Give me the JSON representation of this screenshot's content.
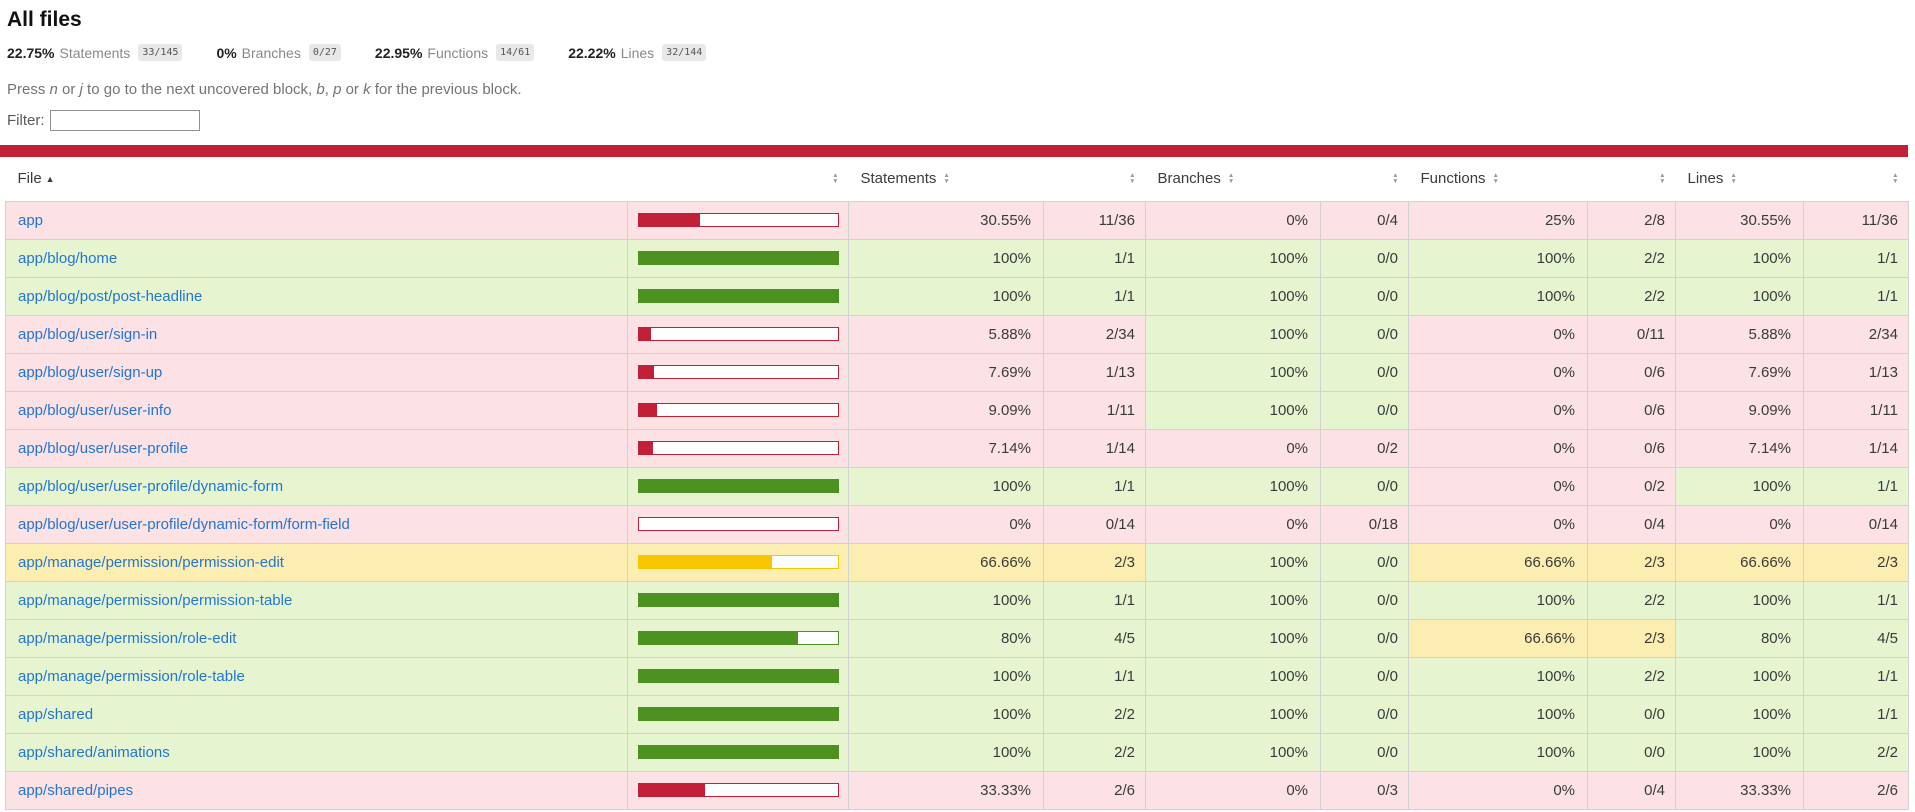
{
  "page": {
    "title": "All files"
  },
  "summary": {
    "metrics": [
      {
        "pct": "22.75%",
        "label": "Statements",
        "fraction": "33/145"
      },
      {
        "pct": "0%",
        "label": "Branches",
        "fraction": "0/27"
      },
      {
        "pct": "22.95%",
        "label": "Functions",
        "fraction": "14/61"
      },
      {
        "pct": "22.22%",
        "label": "Lines",
        "fraction": "32/144"
      }
    ]
  },
  "keyboard_hint": {
    "segments": [
      {
        "text": "Press "
      },
      {
        "text": "n",
        "em": true
      },
      {
        "text": " or "
      },
      {
        "text": "j",
        "em": true
      },
      {
        "text": " to go to the next uncovered block, "
      },
      {
        "text": "b",
        "em": true
      },
      {
        "text": ", "
      },
      {
        "text": "p",
        "em": true
      },
      {
        "text": " or "
      },
      {
        "text": "k",
        "em": true
      },
      {
        "text": " for the previous block."
      }
    ]
  },
  "filter": {
    "label": "Filter:",
    "value": "",
    "placeholder": ""
  },
  "table": {
    "headers": {
      "file": "File",
      "statements": "Statements",
      "branches": "Branches",
      "functions": "Functions",
      "lines": "Lines"
    },
    "sort": {
      "column": "file",
      "direction": "asc",
      "asc_icon": "▲"
    },
    "rows": [
      {
        "file": "app",
        "bar": {
          "pct": 30.55,
          "level": "low"
        },
        "statements": {
          "pct": "30.55%",
          "frac": "11/36",
          "level": "low"
        },
        "branches": {
          "pct": "0%",
          "frac": "0/4",
          "level": "low"
        },
        "functions": {
          "pct": "25%",
          "frac": "2/8",
          "level": "low"
        },
        "lines": {
          "pct": "30.55%",
          "frac": "11/36",
          "level": "low"
        }
      },
      {
        "file": "app/blog/home",
        "bar": {
          "pct": 100,
          "level": "high"
        },
        "statements": {
          "pct": "100%",
          "frac": "1/1",
          "level": "high"
        },
        "branches": {
          "pct": "100%",
          "frac": "0/0",
          "level": "high"
        },
        "functions": {
          "pct": "100%",
          "frac": "2/2",
          "level": "high"
        },
        "lines": {
          "pct": "100%",
          "frac": "1/1",
          "level": "high"
        }
      },
      {
        "file": "app/blog/post/post-headline",
        "bar": {
          "pct": 100,
          "level": "high"
        },
        "statements": {
          "pct": "100%",
          "frac": "1/1",
          "level": "high"
        },
        "branches": {
          "pct": "100%",
          "frac": "0/0",
          "level": "high"
        },
        "functions": {
          "pct": "100%",
          "frac": "2/2",
          "level": "high"
        },
        "lines": {
          "pct": "100%",
          "frac": "1/1",
          "level": "high"
        }
      },
      {
        "file": "app/blog/user/sign-in",
        "bar": {
          "pct": 5.88,
          "level": "low"
        },
        "statements": {
          "pct": "5.88%",
          "frac": "2/34",
          "level": "low"
        },
        "branches": {
          "pct": "100%",
          "frac": "0/0",
          "level": "high"
        },
        "functions": {
          "pct": "0%",
          "frac": "0/11",
          "level": "low"
        },
        "lines": {
          "pct": "5.88%",
          "frac": "2/34",
          "level": "low"
        }
      },
      {
        "file": "app/blog/user/sign-up",
        "bar": {
          "pct": 7.69,
          "level": "low"
        },
        "statements": {
          "pct": "7.69%",
          "frac": "1/13",
          "level": "low"
        },
        "branches": {
          "pct": "100%",
          "frac": "0/0",
          "level": "high"
        },
        "functions": {
          "pct": "0%",
          "frac": "0/6",
          "level": "low"
        },
        "lines": {
          "pct": "7.69%",
          "frac": "1/13",
          "level": "low"
        }
      },
      {
        "file": "app/blog/user/user-info",
        "bar": {
          "pct": 9.09,
          "level": "low"
        },
        "statements": {
          "pct": "9.09%",
          "frac": "1/11",
          "level": "low"
        },
        "branches": {
          "pct": "100%",
          "frac": "0/0",
          "level": "high"
        },
        "functions": {
          "pct": "0%",
          "frac": "0/6",
          "level": "low"
        },
        "lines": {
          "pct": "9.09%",
          "frac": "1/11",
          "level": "low"
        }
      },
      {
        "file": "app/blog/user/user-profile",
        "bar": {
          "pct": 7.14,
          "level": "low"
        },
        "statements": {
          "pct": "7.14%",
          "frac": "1/14",
          "level": "low"
        },
        "branches": {
          "pct": "0%",
          "frac": "0/2",
          "level": "low"
        },
        "functions": {
          "pct": "0%",
          "frac": "0/6",
          "level": "low"
        },
        "lines": {
          "pct": "7.14%",
          "frac": "1/14",
          "level": "low"
        }
      },
      {
        "file": "app/blog/user/user-profile/dynamic-form",
        "bar": {
          "pct": 100,
          "level": "high"
        },
        "statements": {
          "pct": "100%",
          "frac": "1/1",
          "level": "high"
        },
        "branches": {
          "pct": "100%",
          "frac": "0/0",
          "level": "high"
        },
        "functions": {
          "pct": "0%",
          "frac": "0/2",
          "level": "low"
        },
        "lines": {
          "pct": "100%",
          "frac": "1/1",
          "level": "high"
        }
      },
      {
        "file": "app/blog/user/user-profile/dynamic-form/form-field",
        "bar": {
          "pct": 0,
          "level": "low"
        },
        "statements": {
          "pct": "0%",
          "frac": "0/14",
          "level": "low"
        },
        "branches": {
          "pct": "0%",
          "frac": "0/18",
          "level": "low"
        },
        "functions": {
          "pct": "0%",
          "frac": "0/4",
          "level": "low"
        },
        "lines": {
          "pct": "0%",
          "frac": "0/14",
          "level": "low"
        }
      },
      {
        "file": "app/manage/permission/permission-edit",
        "bar": {
          "pct": 66.66,
          "level": "medium"
        },
        "statements": {
          "pct": "66.66%",
          "frac": "2/3",
          "level": "medium"
        },
        "branches": {
          "pct": "100%",
          "frac": "0/0",
          "level": "high"
        },
        "functions": {
          "pct": "66.66%",
          "frac": "2/3",
          "level": "medium"
        },
        "lines": {
          "pct": "66.66%",
          "frac": "2/3",
          "level": "medium"
        }
      },
      {
        "file": "app/manage/permission/permission-table",
        "bar": {
          "pct": 100,
          "level": "high"
        },
        "statements": {
          "pct": "100%",
          "frac": "1/1",
          "level": "high"
        },
        "branches": {
          "pct": "100%",
          "frac": "0/0",
          "level": "high"
        },
        "functions": {
          "pct": "100%",
          "frac": "2/2",
          "level": "high"
        },
        "lines": {
          "pct": "100%",
          "frac": "1/1",
          "level": "high"
        }
      },
      {
        "file": "app/manage/permission/role-edit",
        "bar": {
          "pct": 80,
          "level": "high"
        },
        "statements": {
          "pct": "80%",
          "frac": "4/5",
          "level": "high"
        },
        "branches": {
          "pct": "100%",
          "frac": "0/0",
          "level": "high"
        },
        "functions": {
          "pct": "66.66%",
          "frac": "2/3",
          "level": "medium"
        },
        "lines": {
          "pct": "80%",
          "frac": "4/5",
          "level": "high"
        }
      },
      {
        "file": "app/manage/permission/role-table",
        "bar": {
          "pct": 100,
          "level": "high"
        },
        "statements": {
          "pct": "100%",
          "frac": "1/1",
          "level": "high"
        },
        "branches": {
          "pct": "100%",
          "frac": "0/0",
          "level": "high"
        },
        "functions": {
          "pct": "100%",
          "frac": "2/2",
          "level": "high"
        },
        "lines": {
          "pct": "100%",
          "frac": "1/1",
          "level": "high"
        }
      },
      {
        "file": "app/shared",
        "bar": {
          "pct": 100,
          "level": "high"
        },
        "statements": {
          "pct": "100%",
          "frac": "2/2",
          "level": "high"
        },
        "branches": {
          "pct": "100%",
          "frac": "0/0",
          "level": "high"
        },
        "functions": {
          "pct": "100%",
          "frac": "0/0",
          "level": "high"
        },
        "lines": {
          "pct": "100%",
          "frac": "1/1",
          "level": "high"
        }
      },
      {
        "file": "app/shared/animations",
        "bar": {
          "pct": 100,
          "level": "high"
        },
        "statements": {
          "pct": "100%",
          "frac": "2/2",
          "level": "high"
        },
        "branches": {
          "pct": "100%",
          "frac": "0/0",
          "level": "high"
        },
        "functions": {
          "pct": "100%",
          "frac": "0/0",
          "level": "high"
        },
        "lines": {
          "pct": "100%",
          "frac": "2/2",
          "level": "high"
        }
      },
      {
        "file": "app/shared/pipes",
        "bar": {
          "pct": 33.33,
          "level": "low"
        },
        "statements": {
          "pct": "33.33%",
          "frac": "2/6",
          "level": "low"
        },
        "branches": {
          "pct": "0%",
          "frac": "0/3",
          "level": "low"
        },
        "functions": {
          "pct": "0%",
          "frac": "0/4",
          "level": "low"
        },
        "lines": {
          "pct": "33.33%",
          "frac": "2/6",
          "level": "low"
        }
      }
    ]
  },
  "colors": {
    "status_line": "#C21F39",
    "low_bg": "#FCE1E5",
    "low_fill": "#C21F39",
    "medium_bg": "#FCEDB0",
    "medium_fill": "#F6C700",
    "high_bg": "#E6F5D0",
    "high_fill": "#4D9221",
    "link": "#2276D3"
  }
}
